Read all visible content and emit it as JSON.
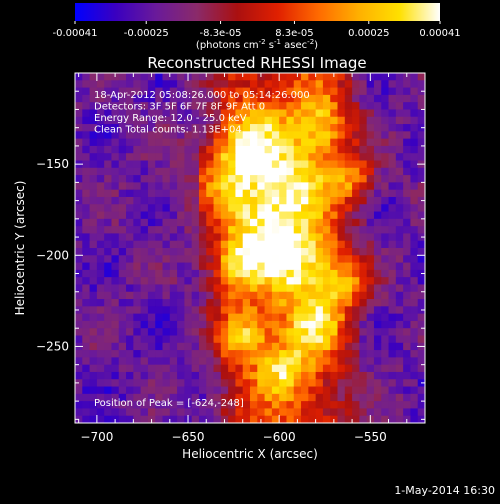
{
  "colorbar": {
    "tick_labels": [
      "-0.00041",
      "-0.00025",
      "-8.3e-05",
      "8.3e-05",
      "0.00025",
      "0.00041"
    ],
    "tick_values": [
      -0.00041,
      -0.00025,
      -8.3e-05,
      8.3e-05,
      0.00025,
      0.00041
    ],
    "range": [
      -0.00041,
      0.00041
    ],
    "units_label": "(photons cm",
    "units_exp1": "-2",
    "units_mid": " s",
    "units_exp2": "-1",
    "units_end": " asec",
    "units_exp3": "-2",
    "units_close": ")",
    "colormap": [
      "#0000ff",
      "#3a00c0",
      "#6a1a9a",
      "#8a2a6a",
      "#aa1010",
      "#e02000",
      "#ff6a00",
      "#ffb000",
      "#ffe000",
      "#ffffff"
    ]
  },
  "chart_data": {
    "type": "heatmap",
    "title": "Reconstructed RHESSI Image",
    "xlabel": "Heliocentric X (arcsec)",
    "ylabel": "Heliocentric Y (arcsec)",
    "xlim": [
      -712,
      -520
    ],
    "ylim": [
      -292,
      -100
    ],
    "x_ticks": [
      -700,
      -650,
      -600,
      -550
    ],
    "y_ticks": [
      -150,
      -200,
      -250
    ],
    "annotations": [
      "18-Apr-2012 05:08:26.000 to 05:14:26.000",
      "Detectors: 3F 5F 6F 7F 8F 9F Att 0",
      "Energy Range: 12.0 - 25.0 keV",
      "Clean     Total counts: 1.13E+04"
    ],
    "peak_label": "Position of Peak = [-624,-248]",
    "peak_position": [
      -624,
      -248
    ]
  },
  "footer": {
    "timestamp": "1-May-2014 16:30"
  }
}
